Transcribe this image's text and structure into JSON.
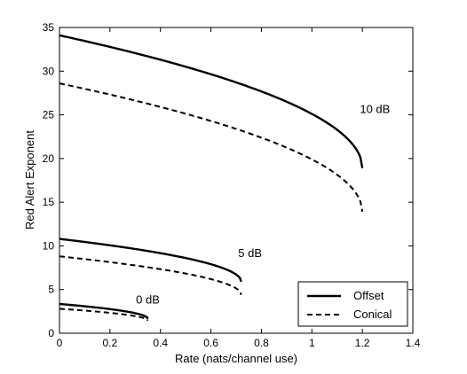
{
  "chart_data": {
    "type": "line",
    "title": "",
    "xlabel": "Rate (nats/channel use)",
    "ylabel": "Red Alert Exponent",
    "xlim": [
      0,
      1.4
    ],
    "ylim": [
      0,
      35
    ],
    "xticks": [
      "0",
      "0.2",
      "0.4",
      "0.6",
      "0.8",
      "1",
      "1.2",
      "1.4"
    ],
    "yticks": [
      "0",
      "5",
      "10",
      "15",
      "20",
      "25",
      "30",
      "35"
    ],
    "grid": false,
    "legend": {
      "position": "bottom-right",
      "entries": [
        {
          "label": "Offset",
          "style": "solid"
        },
        {
          "label": "Conical",
          "style": "dashed"
        }
      ]
    },
    "series": [
      {
        "name": "Offset",
        "group": "10 dB",
        "style": "solid",
        "x0": 1.2,
        "y_start": 34.1,
        "y_end": 18.9
      },
      {
        "name": "Conical",
        "group": "10 dB",
        "style": "dashed",
        "x0": 1.2,
        "y_start": 28.6,
        "y_end": 13.9
      },
      {
        "name": "Offset",
        "group": "5 dB",
        "style": "solid",
        "x0": 0.72,
        "y_start": 10.8,
        "y_end": 5.9
      },
      {
        "name": "Conical",
        "group": "5 dB",
        "style": "dashed",
        "x0": 0.72,
        "y_start": 8.8,
        "y_end": 4.4
      },
      {
        "name": "Offset",
        "group": "0 dB",
        "style": "solid",
        "x0": 0.35,
        "y_start": 3.35,
        "y_end": 1.65
      },
      {
        "name": "Conical",
        "group": "0 dB",
        "style": "dashed",
        "x0": 0.35,
        "y_start": 2.8,
        "y_end": 1.45
      }
    ],
    "annotations": [
      {
        "text": "10 dB",
        "x": 1.25,
        "y": 25.2
      },
      {
        "text": "5 dB",
        "x": 0.755,
        "y": 8.7
      },
      {
        "text": "0 dB",
        "x": 0.35,
        "y": 3.4
      }
    ]
  }
}
